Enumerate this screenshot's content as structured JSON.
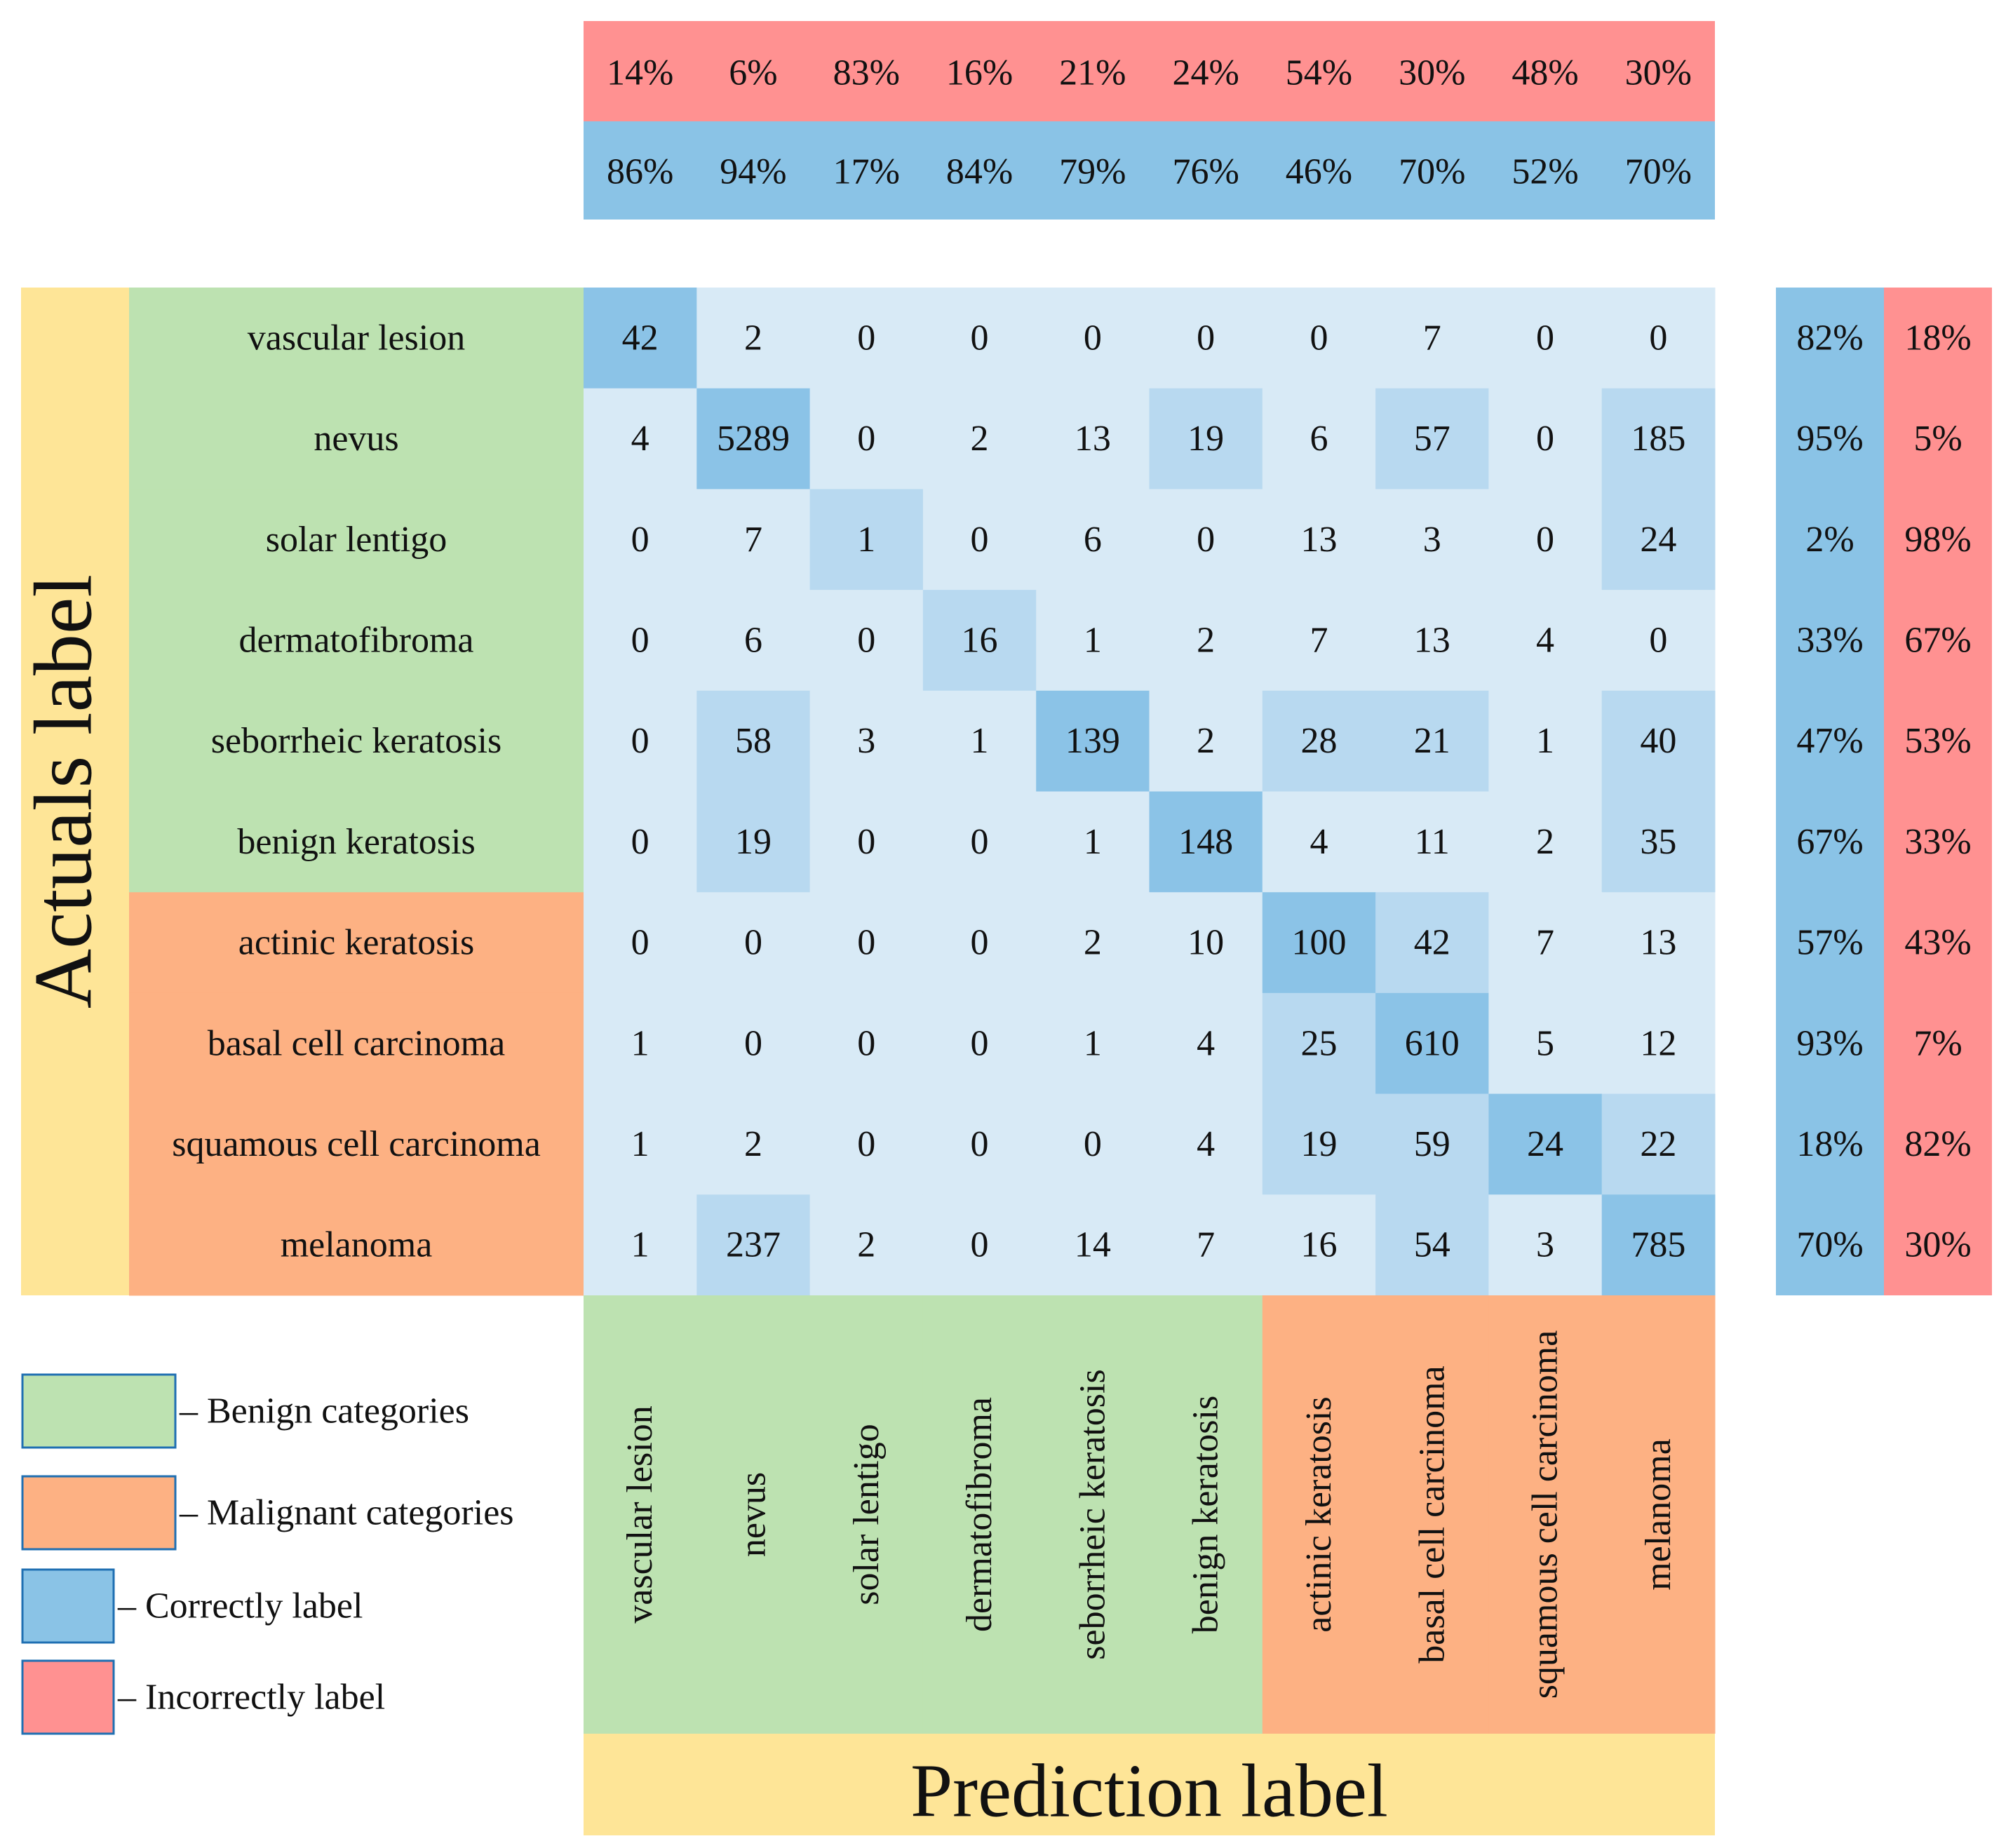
{
  "chart_data": {
    "type": "heatmap",
    "title": "",
    "xlabel": "Prediction label",
    "ylabel": "Actuals label",
    "categories": [
      "vascular lesion",
      "nevus",
      "solar lentigo",
      "dermatofibroma",
      "seborrheic keratosis",
      "benign keratosis",
      "actinic keratosis",
      "basal cell carcinoma",
      "squamous cell carcinoma",
      "melanoma"
    ],
    "category_group": [
      "benign",
      "benign",
      "benign",
      "benign",
      "benign",
      "benign",
      "malignant",
      "malignant",
      "malignant",
      "malignant"
    ],
    "matrix": [
      [
        42,
        2,
        0,
        0,
        0,
        0,
        0,
        7,
        0,
        0
      ],
      [
        4,
        5289,
        0,
        2,
        13,
        19,
        6,
        57,
        0,
        185
      ],
      [
        0,
        7,
        1,
        0,
        6,
        0,
        13,
        3,
        0,
        24
      ],
      [
        0,
        6,
        0,
        16,
        1,
        2,
        7,
        13,
        4,
        0
      ],
      [
        0,
        58,
        3,
        1,
        139,
        2,
        28,
        21,
        1,
        40
      ],
      [
        0,
        19,
        0,
        0,
        1,
        148,
        4,
        11,
        2,
        35
      ],
      [
        0,
        0,
        0,
        0,
        2,
        10,
        100,
        42,
        7,
        13
      ],
      [
        1,
        0,
        0,
        0,
        1,
        4,
        25,
        610,
        5,
        12
      ],
      [
        1,
        2,
        0,
        0,
        0,
        4,
        19,
        59,
        24,
        22
      ],
      [
        1,
        237,
        2,
        0,
        14,
        7,
        16,
        54,
        3,
        785
      ]
    ],
    "cell_shade": [
      [
        2,
        0,
        0,
        0,
        0,
        0,
        0,
        0,
        0,
        0
      ],
      [
        0,
        2,
        0,
        0,
        0,
        1,
        0,
        1,
        0,
        1
      ],
      [
        0,
        0,
        1,
        0,
        0,
        0,
        0,
        0,
        0,
        1
      ],
      [
        0,
        0,
        0,
        1,
        0,
        0,
        0,
        0,
        0,
        0
      ],
      [
        0,
        1,
        0,
        0,
        2,
        0,
        1,
        1,
        0,
        1
      ],
      [
        0,
        1,
        0,
        0,
        0,
        2,
        0,
        0,
        0,
        1
      ],
      [
        0,
        0,
        0,
        0,
        0,
        0,
        2,
        1,
        0,
        0
      ],
      [
        0,
        0,
        0,
        0,
        0,
        0,
        1,
        2,
        0,
        0
      ],
      [
        0,
        0,
        0,
        0,
        0,
        0,
        1,
        1,
        2,
        1
      ],
      [
        0,
        1,
        0,
        0,
        0,
        0,
        0,
        1,
        0,
        2
      ]
    ],
    "column_incorrect": [
      "14%",
      "6%",
      "83%",
      "16%",
      "21%",
      "24%",
      "54%",
      "30%",
      "48%",
      "30%"
    ],
    "column_correct": [
      "86%",
      "94%",
      "17%",
      "84%",
      "79%",
      "76%",
      "46%",
      "70%",
      "52%",
      "70%"
    ],
    "row_correct": [
      "82%",
      "95%",
      "2%",
      "33%",
      "47%",
      "67%",
      "57%",
      "93%",
      "18%",
      "70%"
    ],
    "row_incorrect": [
      "18%",
      "5%",
      "98%",
      "67%",
      "53%",
      "33%",
      "43%",
      "7%",
      "82%",
      "30%"
    ],
    "legend": [
      {
        "label": "– Benign categories",
        "color": "#bde2b1"
      },
      {
        "label": "– Malignant categories",
        "color": "#fdb183"
      },
      {
        "label": "– Correctly label",
        "color": "#8ac3e6"
      },
      {
        "label": "– Incorrectly label",
        "color": "#ff9191"
      }
    ]
  },
  "colors": {
    "benign": "#bde2b1",
    "malignant": "#fdb183",
    "correct": "#8ac3e6",
    "incorrect": "#ff9191",
    "axis_band": "#fee597",
    "shade_0": "#d8eaf6",
    "shade_1": "#b8d9f0",
    "shade_2": "#8bc3e7",
    "legend_border": "#1f6fb2"
  }
}
